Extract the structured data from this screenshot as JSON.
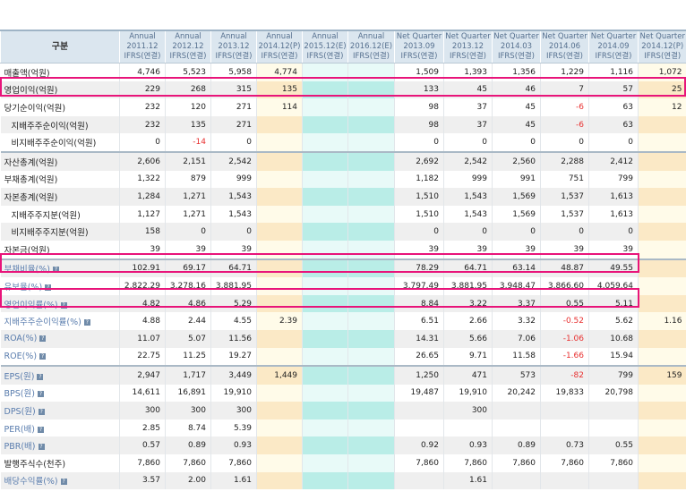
{
  "header": {
    "label": "구분",
    "columns": [
      [
        "Annual",
        "2011.12",
        "IFRS(연결)"
      ],
      [
        "Annual",
        "2012.12",
        "IFRS(연결)"
      ],
      [
        "Annual",
        "2013.12",
        "IFRS(연결)"
      ],
      [
        "Annual",
        "2014.12(P)",
        "IFRS(연결)"
      ],
      [
        "Annual",
        "2015.12(E)",
        "IFRS(연결)"
      ],
      [
        "Annual",
        "2016.12(E)",
        "IFRS(연결)"
      ],
      [
        "Net Quarter",
        "2013.09",
        "IFRS(연결)"
      ],
      [
        "Net Quarter",
        "2013.12",
        "IFRS(연결)"
      ],
      [
        "Net Quarter",
        "2014.03",
        "IFRS(연결)"
      ],
      [
        "Net Quarter",
        "2014.06",
        "IFRS(연결)"
      ],
      [
        "Net Quarter",
        "2014.09",
        "IFRS(연결)"
      ],
      [
        "Net Quarter",
        "2014.12(P)",
        "IFRS(연결)"
      ]
    ]
  },
  "rows": [
    {
      "label": "매출액(억원)",
      "values": [
        "4,746",
        "5,523",
        "5,958",
        "4,774",
        "",
        "",
        "1,509",
        "1,393",
        "1,356",
        "1,229",
        "1,116",
        "1,072"
      ]
    },
    {
      "label": "영업이익(억원)",
      "values": [
        "229",
        "268",
        "315",
        "135",
        "",
        "",
        "133",
        "45",
        "46",
        "7",
        "57",
        "25"
      ],
      "highlighted": true
    },
    {
      "label": "당기순이익(억원)",
      "values": [
        "232",
        "120",
        "271",
        "114",
        "",
        "",
        "98",
        "37",
        "45",
        "-6",
        "63",
        "12"
      ]
    },
    {
      "label": "지배주주순이익(억원)",
      "values": [
        "232",
        "135",
        "271",
        "",
        "",
        "",
        "98",
        "37",
        "45",
        "-6",
        "63",
        ""
      ],
      "indent": true
    },
    {
      "label": "비지배주주순이익(억원)",
      "values": [
        "0",
        "-14",
        "0",
        "",
        "",
        "",
        "0",
        "0",
        "0",
        "0",
        "0",
        ""
      ],
      "indent": true
    },
    {
      "label": "자산총계(억원)",
      "values": [
        "2,606",
        "2,151",
        "2,542",
        "",
        "",
        "",
        "2,692",
        "2,542",
        "2,560",
        "2,288",
        "2,412",
        ""
      ],
      "section": true
    },
    {
      "label": "부채총계(억원)",
      "values": [
        "1,322",
        "879",
        "999",
        "",
        "",
        "",
        "1,182",
        "999",
        "991",
        "751",
        "799",
        ""
      ]
    },
    {
      "label": "자본총계(억원)",
      "values": [
        "1,284",
        "1,271",
        "1,543",
        "",
        "",
        "",
        "1,510",
        "1,543",
        "1,569",
        "1,537",
        "1,613",
        ""
      ]
    },
    {
      "label": "지배주주지분(억원)",
      "values": [
        "1,127",
        "1,271",
        "1,543",
        "",
        "",
        "",
        "1,510",
        "1,543",
        "1,569",
        "1,537",
        "1,613",
        ""
      ],
      "indent": true
    },
    {
      "label": "비지배주주지분(억원)",
      "values": [
        "158",
        "0",
        "0",
        "",
        "",
        "",
        "0",
        "0",
        "0",
        "0",
        "0",
        ""
      ],
      "indent": true
    },
    {
      "label": "자본금(억원)",
      "values": [
        "39",
        "39",
        "39",
        "",
        "",
        "",
        "39",
        "39",
        "39",
        "39",
        "39",
        ""
      ]
    },
    {
      "label": "부채비율(%)",
      "values": [
        "102.91",
        "69.17",
        "64.71",
        "",
        "",
        "",
        "78.29",
        "64.71",
        "63.14",
        "48.87",
        "49.55",
        ""
      ],
      "link": true,
      "section": true,
      "highlighted": true
    },
    {
      "label": "유보율(%)",
      "values": [
        "2,822.29",
        "3,278.16",
        "3,881.95",
        "",
        "",
        "",
        "3,797.49",
        "3,881.95",
        "3,948.47",
        "3,866.60",
        "4,059.64",
        ""
      ],
      "link": true
    },
    {
      "label": "영업이익률(%)",
      "values": [
        "4.82",
        "4.86",
        "5.29",
        "",
        "",
        "",
        "8.84",
        "3.22",
        "3.37",
        "0.55",
        "5.11",
        ""
      ],
      "link": true,
      "highlighted": true
    },
    {
      "label": "지배주주순이익률(%)",
      "values": [
        "4.88",
        "2.44",
        "4.55",
        "2.39",
        "",
        "",
        "6.51",
        "2.66",
        "3.32",
        "-0.52",
        "5.62",
        "1.16"
      ],
      "link": true
    },
    {
      "label": "ROA(%)",
      "values": [
        "11.07",
        "5.07",
        "11.56",
        "",
        "",
        "",
        "14.31",
        "5.66",
        "7.06",
        "-1.06",
        "10.68",
        ""
      ],
      "link": true
    },
    {
      "label": "ROE(%)",
      "values": [
        "22.75",
        "11.25",
        "19.27",
        "",
        "",
        "",
        "26.65",
        "9.71",
        "11.58",
        "-1.66",
        "15.94",
        ""
      ],
      "link": true
    },
    {
      "label": "EPS(원)",
      "values": [
        "2,947",
        "1,717",
        "3,449",
        "1,449",
        "",
        "",
        "1,250",
        "471",
        "573",
        "-82",
        "799",
        "159"
      ],
      "link": true,
      "section": true
    },
    {
      "label": "BPS(원)",
      "values": [
        "14,611",
        "16,891",
        "19,910",
        "",
        "",
        "",
        "19,487",
        "19,910",
        "20,242",
        "19,833",
        "20,798",
        ""
      ],
      "link": true
    },
    {
      "label": "DPS(원)",
      "values": [
        "300",
        "300",
        "300",
        "",
        "",
        "",
        "",
        "300",
        "",
        "",
        "",
        ""
      ],
      "link": true
    },
    {
      "label": "PER(배)",
      "values": [
        "2.85",
        "8.74",
        "5.39",
        "",
        "",
        "",
        "",
        "",
        "",
        "",
        "",
        ""
      ],
      "link": true
    },
    {
      "label": "PBR(배)",
      "values": [
        "0.57",
        "0.89",
        "0.93",
        "",
        "",
        "",
        "0.92",
        "0.93",
        "0.89",
        "0.73",
        "0.55",
        ""
      ],
      "link": true
    },
    {
      "label": "발행주식수(천주)",
      "values": [
        "7,860",
        "7,860",
        "7,860",
        "",
        "",
        "",
        "7,860",
        "7,860",
        "7,860",
        "7,860",
        "7,860",
        ""
      ]
    },
    {
      "label": "배당수익률(%)",
      "values": [
        "3.57",
        "2.00",
        "1.61",
        "",
        "",
        "",
        "",
        "1.61",
        "",
        "",
        "",
        ""
      ],
      "link": true
    }
  ],
  "colors": {
    "highlight": "#e8147a",
    "negative": "#e83030",
    "link": "#5a7dae"
  },
  "help_icon": "question-mark-icon"
}
